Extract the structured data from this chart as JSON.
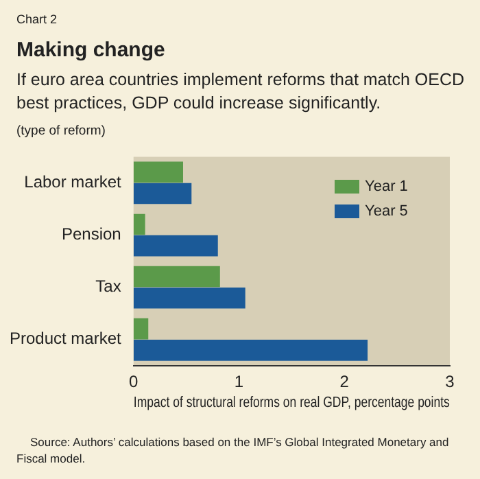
{
  "chart_data": {
    "type": "bar",
    "orientation": "horizontal",
    "title": "Making change",
    "subtitle": "If euro area countries implement reforms that match OECD best practices, GDP could increase significantly.",
    "ylabel": "(type of reform)",
    "xlabel": "Impact of structural reforms on real GDP, percentage points",
    "annotations": [
      "Chart 2",
      "Source: Authors’ calculations based on the IMF’s Global Integrated Monetary and Fiscal model."
    ],
    "categories": [
      "Labor market",
      "Pension",
      "Tax",
      "Product market"
    ],
    "series": [
      {
        "name": "Year 1",
        "color": "#5b9a4a",
        "values": [
          0.47,
          0.11,
          0.82,
          0.14
        ]
      },
      {
        "name": "Year 5",
        "color": "#1b5a98",
        "values": [
          0.55,
          0.8,
          1.06,
          2.22
        ]
      }
    ],
    "xlim": [
      0,
      3
    ],
    "xticks": [
      0,
      1,
      2,
      3
    ],
    "grid": false,
    "legend": "top right"
  }
}
